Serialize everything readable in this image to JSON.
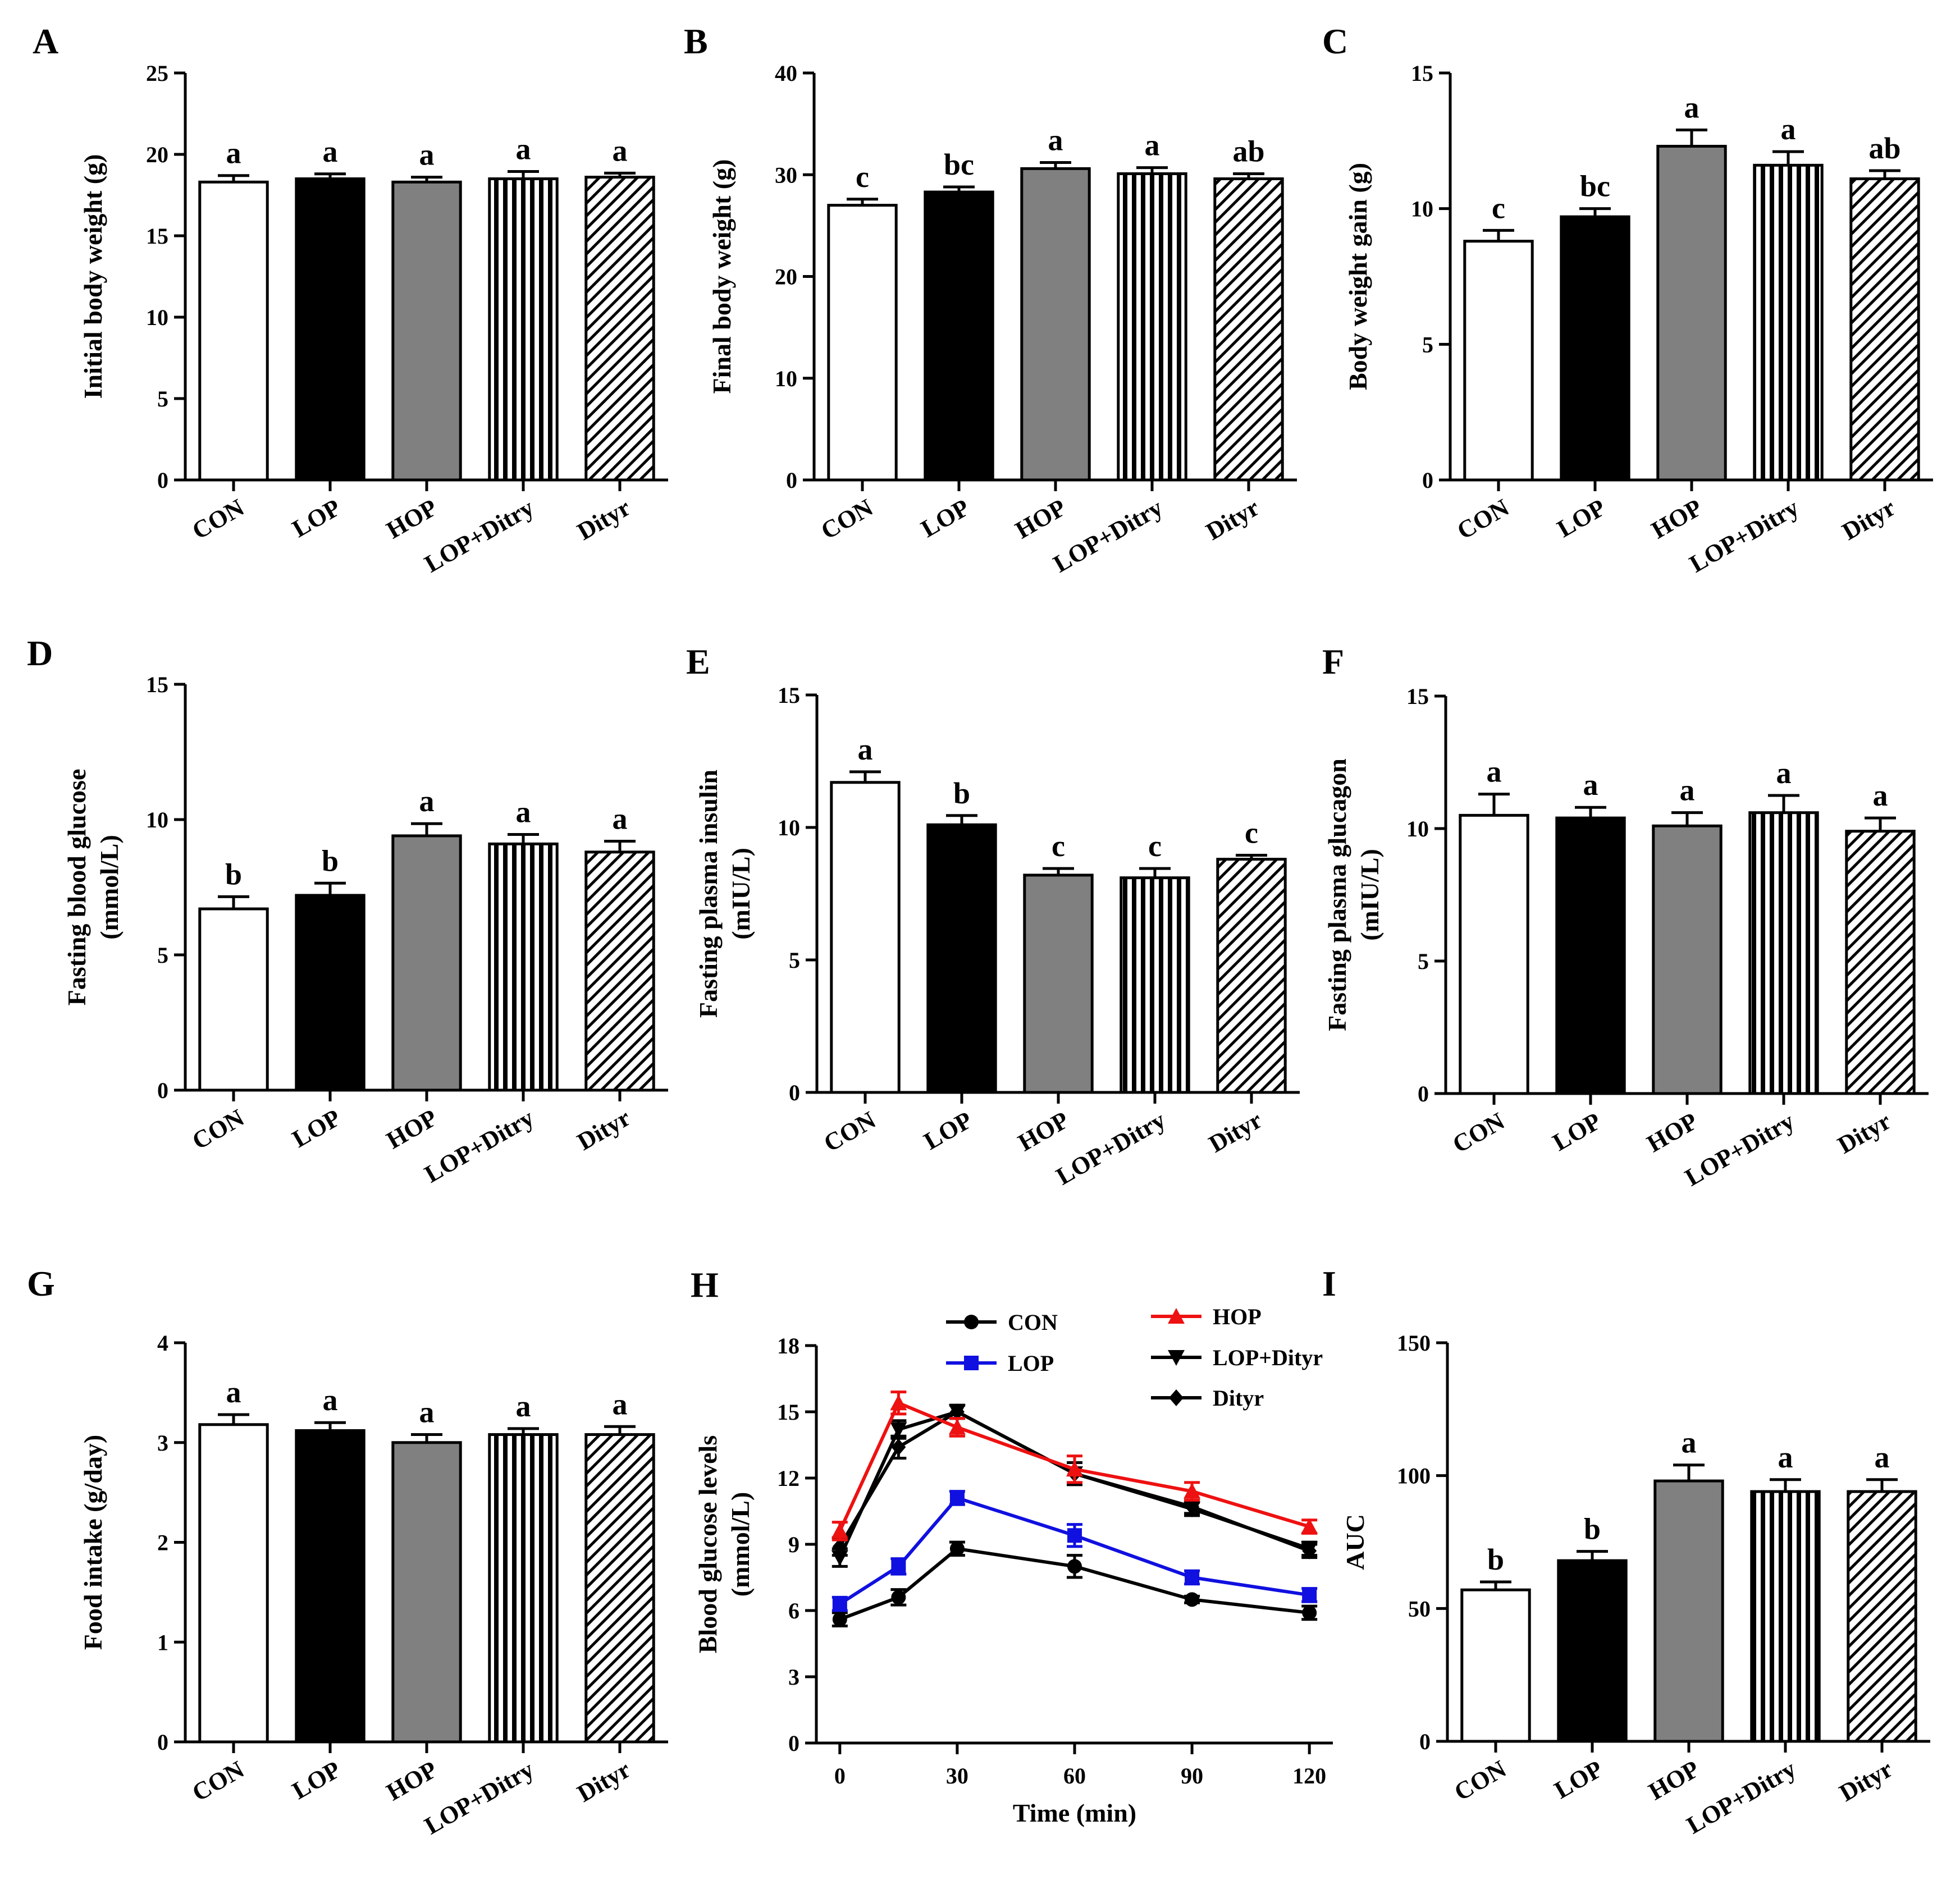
{
  "colors": {
    "CON": "#ffffff",
    "LOP": "#000000",
    "HOP": "#808080",
    "LOP+Ditry": "pattern-vertical",
    "Dityr": "pattern-diagonal",
    "line_CON": "#000000",
    "line_LOP": "#1010e0",
    "line_HOP": "#ee1111",
    "line_LOPDityr": "#000000",
    "line_Dityr": "#000000"
  },
  "chart_data": [
    {
      "id": "A",
      "letter": "A",
      "type": "bar",
      "ylabel": [
        "Initial body weight (g)"
      ],
      "ylim": [
        0,
        25
      ],
      "yticks": [
        0,
        5,
        10,
        15,
        20,
        25
      ],
      "categories": [
        "CON",
        "LOP",
        "HOP",
        "LOP+Ditry",
        "Dityr"
      ],
      "values": [
        18.3,
        18.5,
        18.3,
        18.5,
        18.6
      ],
      "errors": [
        0.4,
        0.3,
        0.3,
        0.45,
        0.25
      ],
      "sig": [
        "a",
        "a",
        "a",
        "a",
        "a"
      ]
    },
    {
      "id": "B",
      "letter": "B",
      "type": "bar",
      "ylabel": [
        "Final body weight (g)"
      ],
      "ylim": [
        0,
        40
      ],
      "yticks": [
        0,
        10,
        20,
        30,
        40
      ],
      "categories": [
        "CON",
        "LOP",
        "HOP",
        "LOP+Ditry",
        "Dityr"
      ],
      "values": [
        27.0,
        28.3,
        30.6,
        30.1,
        29.6
      ],
      "errors": [
        0.6,
        0.5,
        0.6,
        0.6,
        0.5
      ],
      "sig": [
        "c",
        "bc",
        "a",
        "a",
        "ab"
      ]
    },
    {
      "id": "C",
      "letter": "C",
      "type": "bar",
      "ylabel": [
        "Body weight gain (g)"
      ],
      "ylim": [
        0,
        15
      ],
      "yticks": [
        0,
        5,
        10,
        15
      ],
      "categories": [
        "CON",
        "LOP",
        "HOP",
        "LOP+Ditry",
        "Dityr"
      ],
      "values": [
        8.8,
        9.7,
        12.3,
        11.6,
        11.1
      ],
      "errors": [
        0.4,
        0.3,
        0.6,
        0.5,
        0.3
      ],
      "sig": [
        "c",
        "bc",
        "a",
        "a",
        "ab"
      ]
    },
    {
      "id": "D",
      "letter": "D",
      "type": "bar",
      "ylabel": [
        "Fasting blood glucose",
        "(mmol/L)"
      ],
      "ylim": [
        0,
        15
      ],
      "yticks": [
        0,
        5,
        10,
        15
      ],
      "categories": [
        "CON",
        "LOP",
        "HOP",
        "LOP+Ditry",
        "Dityr"
      ],
      "values": [
        6.7,
        7.2,
        9.4,
        9.1,
        8.8
      ],
      "errors": [
        0.45,
        0.45,
        0.45,
        0.35,
        0.4
      ],
      "sig": [
        "b",
        "b",
        "a",
        "a",
        "a"
      ]
    },
    {
      "id": "E",
      "letter": "E",
      "type": "bar",
      "ylabel": [
        "Fasting plasma insulin",
        "(mIU/L)"
      ],
      "ylim": [
        0,
        15
      ],
      "yticks": [
        0,
        5,
        10,
        15
      ],
      "categories": [
        "CON",
        "LOP",
        "HOP",
        "LOP+Ditry",
        "Dityr"
      ],
      "values": [
        11.7,
        10.1,
        8.2,
        8.1,
        8.8
      ],
      "errors": [
        0.4,
        0.35,
        0.25,
        0.35,
        0.15
      ],
      "sig": [
        "a",
        "b",
        "c",
        "c",
        "c"
      ]
    },
    {
      "id": "F",
      "letter": "F",
      "type": "bar",
      "ylabel": [
        "Fasting plasma glucagon",
        "(mIU/L)"
      ],
      "ylim": [
        0,
        15
      ],
      "yticks": [
        0,
        5,
        10,
        15
      ],
      "categories": [
        "CON",
        "LOP",
        "HOP",
        "LOP+Ditry",
        "Dityr"
      ],
      "values": [
        10.5,
        10.4,
        10.1,
        10.6,
        9.9
      ],
      "errors": [
        0.8,
        0.4,
        0.5,
        0.65,
        0.5
      ],
      "sig": [
        "a",
        "a",
        "a",
        "a",
        "a"
      ]
    },
    {
      "id": "G",
      "letter": "G",
      "type": "bar",
      "ylabel": [
        "Food intake (g/day)"
      ],
      "ylim": [
        0,
        4
      ],
      "yticks": [
        0,
        1,
        2,
        3,
        4
      ],
      "categories": [
        "CON",
        "LOP",
        "HOP",
        "LOP+Ditry",
        "Dityr"
      ],
      "values": [
        3.18,
        3.12,
        3.0,
        3.08,
        3.08
      ],
      "errors": [
        0.1,
        0.08,
        0.08,
        0.06,
        0.08
      ],
      "sig": [
        "a",
        "a",
        "a",
        "a",
        "a"
      ]
    },
    {
      "id": "H",
      "letter": "H",
      "type": "line",
      "ylabel": [
        "Blood glucose levels",
        "(mmol/L)"
      ],
      "xlabel": "Time (min)",
      "ylim": [
        0,
        18
      ],
      "yticks": [
        0,
        3,
        6,
        9,
        12,
        15,
        18
      ],
      "xlim": [
        -6,
        126
      ],
      "xticks": [
        0,
        30,
        60,
        90,
        120
      ],
      "x": [
        0,
        15,
        30,
        60,
        90,
        120
      ],
      "series": [
        {
          "name": "CON",
          "marker": "circle",
          "values": [
            5.6,
            6.6,
            8.8,
            8.0,
            6.5,
            5.9
          ],
          "errors": [
            0.3,
            0.35,
            0.3,
            0.5,
            0.15,
            0.3
          ]
        },
        {
          "name": "LOP",
          "marker": "square",
          "values": [
            6.3,
            8.0,
            11.1,
            9.4,
            7.5,
            6.7
          ],
          "errors": [
            0.3,
            0.35,
            0.3,
            0.5,
            0.3,
            0.3
          ]
        },
        {
          "name": "HOP",
          "marker": "triangle-up",
          "values": [
            9.6,
            15.4,
            14.3,
            12.4,
            11.4,
            9.8
          ],
          "errors": [
            0.4,
            0.5,
            0.4,
            0.6,
            0.4,
            0.3
          ]
        },
        {
          "name": "LOP+Dityr",
          "marker": "triangle-down",
          "values": [
            8.4,
            14.2,
            15.0,
            12.2,
            10.6,
            8.8
          ],
          "errors": [
            0.4,
            0.4,
            0.3,
            0.5,
            0.3,
            0.3
          ]
        },
        {
          "name": "Dityr",
          "marker": "diamond",
          "values": [
            8.9,
            13.4,
            15.0,
            12.2,
            10.7,
            8.7
          ],
          "errors": [
            0.4,
            0.5,
            0.3,
            0.5,
            0.3,
            0.3
          ]
        }
      ]
    },
    {
      "id": "I",
      "letter": "I",
      "type": "bar",
      "ylabel": [
        "AUC"
      ],
      "ylim": [
        0,
        150
      ],
      "yticks": [
        0,
        50,
        100,
        150
      ],
      "categories": [
        "CON",
        "LOP",
        "HOP",
        "LOP+Ditry",
        "Dityr"
      ],
      "values": [
        57,
        68,
        98,
        94,
        94
      ],
      "errors": [
        3,
        3.5,
        6,
        4.5,
        4.5
      ],
      "sig": [
        "b",
        "b",
        "a",
        "a",
        "a"
      ]
    }
  ]
}
